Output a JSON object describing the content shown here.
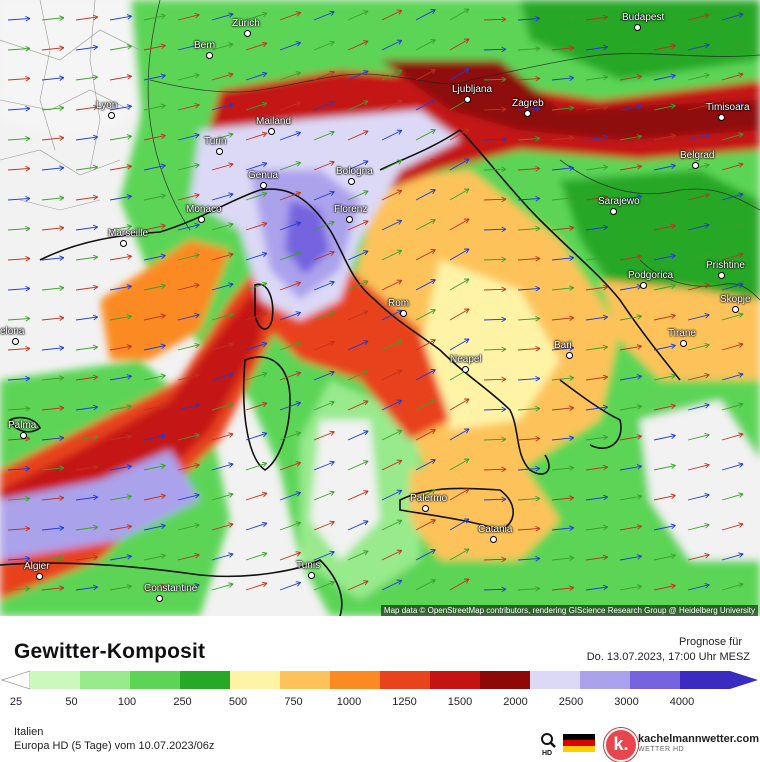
{
  "map": {
    "attribution": "Map data © OpenStreetMap contributors, rendering GIScience Research Group @ Heidelberg University",
    "cities": [
      {
        "name": "Zürich"
      },
      {
        "name": "Bern"
      },
      {
        "name": "Budapest"
      },
      {
        "name": "Lyon"
      },
      {
        "name": "Mailand"
      },
      {
        "name": "Ljubljana"
      },
      {
        "name": "Zagreb"
      },
      {
        "name": "Timisoara"
      },
      {
        "name": "Turin"
      },
      {
        "name": "Genua"
      },
      {
        "name": "Bologna"
      },
      {
        "name": "Belgrad"
      },
      {
        "name": "Monaco"
      },
      {
        "name": "Florenz"
      },
      {
        "name": "Sarajewo"
      },
      {
        "name": "Marseille"
      },
      {
        "name": "Podgorica"
      },
      {
        "name": "Prishtine"
      },
      {
        "name": "Rom"
      },
      {
        "name": "Skopje"
      },
      {
        "name": "elona"
      },
      {
        "name": "Tirane"
      },
      {
        "name": "Neapel"
      },
      {
        "name": "Bari"
      },
      {
        "name": "Palma"
      },
      {
        "name": "Palermo"
      },
      {
        "name": "Catania"
      },
      {
        "name": "Algier"
      },
      {
        "name": "Tunis"
      },
      {
        "name": "Constantine"
      }
    ]
  },
  "legend": {
    "title": "Gewitter-Komposit",
    "forecast_label": "Prognose für",
    "forecast_date": "Do. 13.07.2023, 17:00 Uhr MESZ",
    "scale_colors": [
      "#ffffff",
      "#ccf7bd",
      "#98ea8c",
      "#5cd557",
      "#27a827",
      "#fff4a6",
      "#fdc35a",
      "#fb8a22",
      "#e8431a",
      "#c51313",
      "#8e0808",
      "#dcd9f7",
      "#aba2ec",
      "#7563df",
      "#3a2cc0"
    ],
    "scale_ticks": [
      "25",
      "50",
      "100",
      "250",
      "500",
      "750",
      "1000",
      "1250",
      "1500",
      "2000",
      "2500",
      "3000",
      "4000"
    ],
    "region": "Italien",
    "model": "Europa HD (5 Tage) vom  10.07.2023/06z",
    "brand": "kachelmannwetter.com",
    "brand_sub": "WETTER HD",
    "brand_letter": "k."
  }
}
